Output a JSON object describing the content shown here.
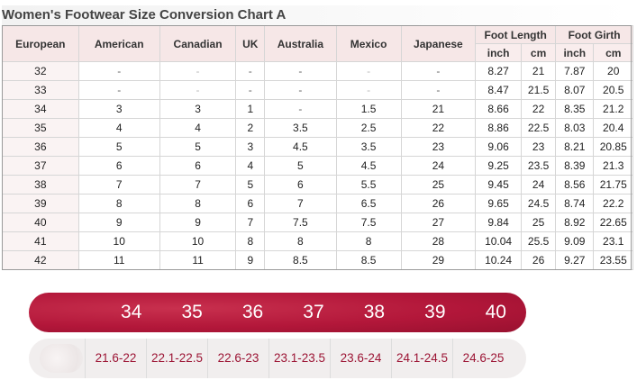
{
  "title": "Women's Footwear Size Conversion Chart A",
  "headers": {
    "european": "European",
    "american": "American",
    "canadian": "Canadian",
    "uk": "UK",
    "australia": "Australia",
    "mexico": "Mexico",
    "japanese": "Japanese",
    "foot_length": "Foot Length",
    "foot_girth": "Foot Girth",
    "fl_inch": "inch",
    "fl_cm": "cm",
    "fg_inch": "inch",
    "fg_cm": "cm"
  },
  "rows": [
    [
      "32",
      "-",
      "-",
      "-",
      "-",
      "-",
      "-",
      "8.27",
      "21",
      "7.87",
      "20"
    ],
    [
      "33",
      "-",
      "-",
      "-",
      "-",
      "-",
      "-",
      "8.47",
      "21.5",
      "8.07",
      "20.5"
    ],
    [
      "34",
      "3",
      "3",
      "1",
      "-",
      "1.5",
      "21",
      "8.66",
      "22",
      "8.35",
      "21.2"
    ],
    [
      "35",
      "4",
      "4",
      "2",
      "3.5",
      "2.5",
      "22",
      "8.86",
      "22.5",
      "8.03",
      "20.4"
    ],
    [
      "36",
      "5",
      "5",
      "3",
      "4.5",
      "3.5",
      "23",
      "9.06",
      "23",
      "8.21",
      "20.85"
    ],
    [
      "37",
      "6",
      "6",
      "4",
      "5",
      "4.5",
      "24",
      "9.25",
      "23.5",
      "8.39",
      "21.3"
    ],
    [
      "38",
      "7",
      "7",
      "5",
      "6",
      "5.5",
      "25",
      "9.45",
      "24",
      "8.56",
      "21.75"
    ],
    [
      "39",
      "8",
      "8",
      "6",
      "7",
      "6.5",
      "26",
      "9.65",
      "24.5",
      "8.74",
      "22.2"
    ],
    [
      "40",
      "9",
      "9",
      "7",
      "7.5",
      "7.5",
      "27",
      "9.84",
      "25",
      "8.92",
      "22.65"
    ],
    [
      "41",
      "10",
      "10",
      "8",
      "8",
      "8",
      "28",
      "10.04",
      "25.5",
      "9.09",
      "23.1"
    ],
    [
      "42",
      "11",
      "11",
      "9",
      "8.5",
      "8.5",
      "29",
      "10.24",
      "26",
      "9.27",
      "23.55"
    ]
  ],
  "size_bar": {
    "sizes": [
      "34",
      "35",
      "36",
      "37",
      "38",
      "39",
      "40"
    ],
    "ranges": [
      "21.6-22",
      "22.1-22.5",
      "22.6-23",
      "23.1-23.5",
      "23.6-24",
      "24.1-24.5",
      "24.6-25"
    ]
  },
  "colors": {
    "bar_red": "#b3173a",
    "range_text": "#9c1434",
    "header_bg": "#f6e7e7"
  }
}
